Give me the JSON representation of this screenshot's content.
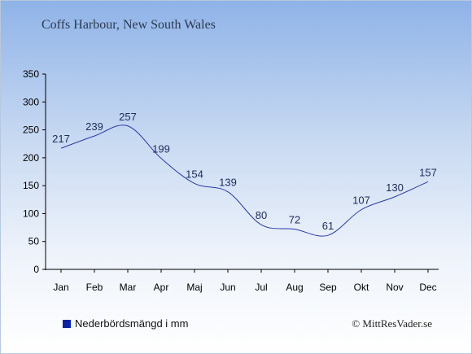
{
  "title": "Coffs Harbour, New South Wales",
  "legend": {
    "label": "Nederbördsmängd i mm"
  },
  "credit": "© MittResVader.se",
  "colors": {
    "series": "#2a3aa8",
    "swatch": "#0a24a8",
    "axis": "#000000"
  },
  "chart_data": {
    "type": "line",
    "title": "Coffs Harbour, New South Wales",
    "xlabel": "",
    "ylabel": "",
    "categories": [
      "Jan",
      "Feb",
      "Mar",
      "Apr",
      "Maj",
      "Jun",
      "Jul",
      "Aug",
      "Sep",
      "Okt",
      "Nov",
      "Dec"
    ],
    "series": [
      {
        "name": "Nederbördsmängd i mm",
        "values": [
          217,
          239,
          257,
          199,
          154,
          139,
          80,
          72,
          61,
          107,
          130,
          157
        ]
      }
    ],
    "ylim": [
      0,
      350
    ],
    "yticks": [
      0,
      50,
      100,
      150,
      200,
      250,
      300,
      350
    ],
    "grid": false,
    "legend_position": "bottom-left"
  }
}
